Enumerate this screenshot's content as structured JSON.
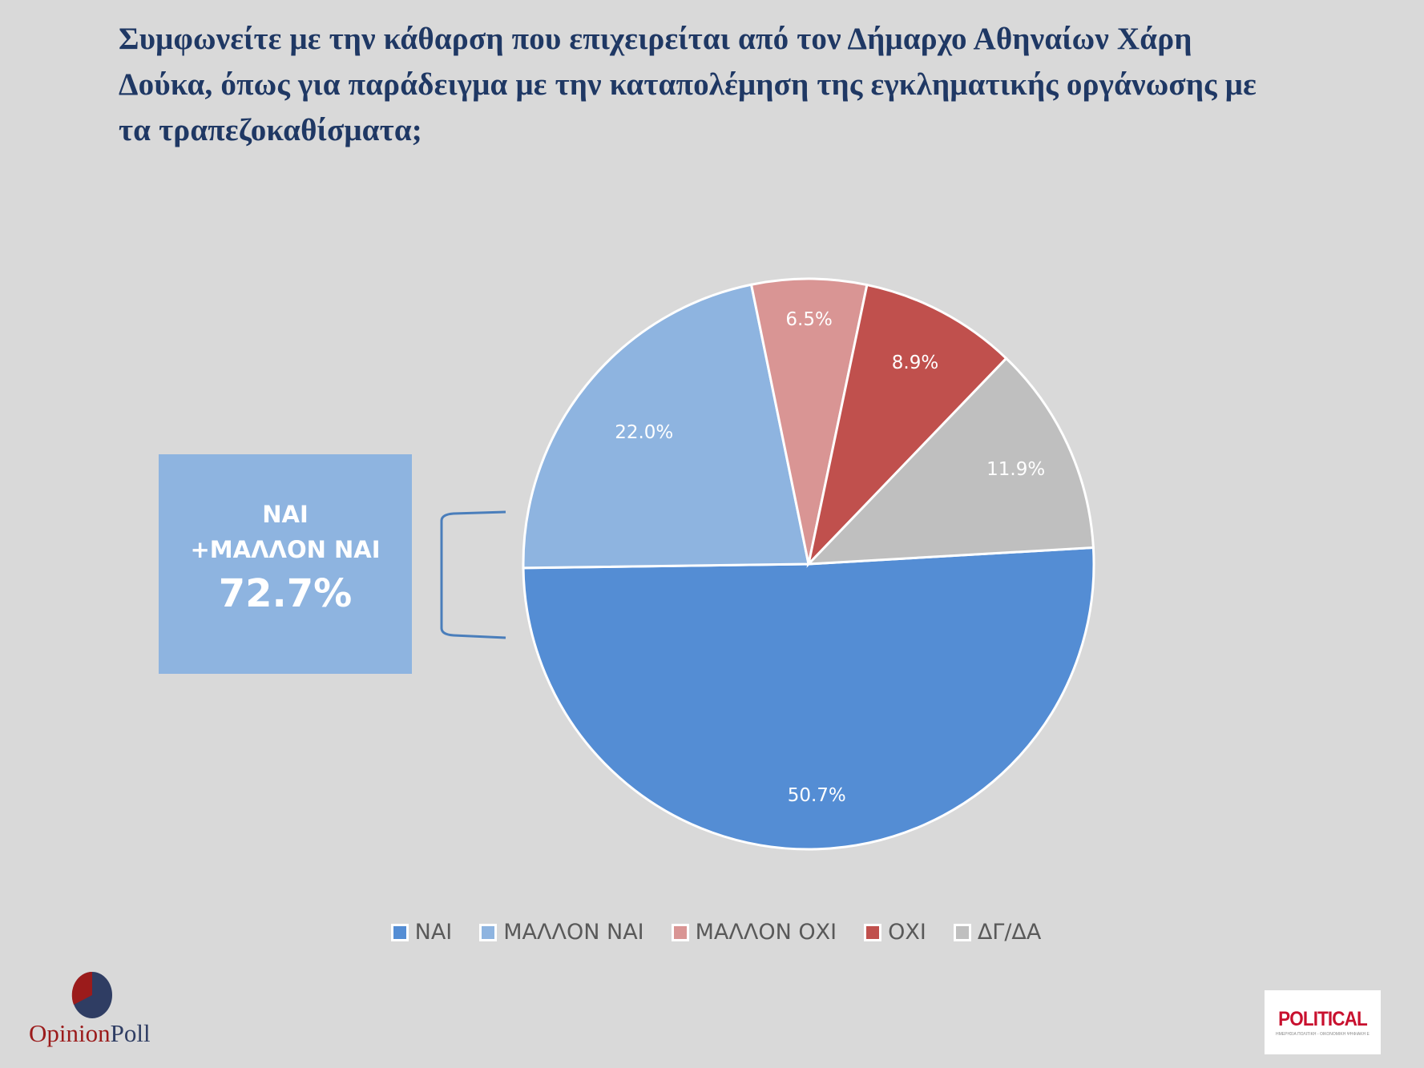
{
  "title": {
    "lines": [
      "Συμφωνείτε με την κάθαρση που επιχειρείται από τον Δήμαρχο Αθηναίων Χάρη",
      "Δούκα, όπως για παράδειγμα με την καταπολέμηση της εγκληματικής οργάνωσης με",
      "τα τραπεζοκαθίσματα;"
    ]
  },
  "summary_box": {
    "line1": "ΝΑΙ",
    "line2": "+ΜΑΛΛΟΝ ΝΑΙ",
    "value": "72.7%",
    "color": "#8eb4e0"
  },
  "legend": [
    {
      "label": "ΝΑΙ",
      "color": "#548dd4"
    },
    {
      "label": "ΜΑΛΛΟΝ ΝΑΙ",
      "color": "#8eb4e0"
    },
    {
      "label": "ΜΑΛΛΟΝ ΟΧΙ",
      "color": "#d99594"
    },
    {
      "label": "ΟΧΙ",
      "color": "#c0504d"
    },
    {
      "label": "ΔΓ/ΔΑ",
      "color": "#bfbfbf"
    }
  ],
  "logos": {
    "opinionpoll_part1": "Opinion",
    "opinionpoll_part2": "Poll",
    "political_name": "POLITICAL",
    "political_tagline": "ΗΜΕΡΗΣΙΑ ΠΟΛΙΤΙΚΗ - ΟΙΚΟΝΟΜΙΚΗ ΨΗΦΙΑΚΗ ΕΦΗΜΕΡΙΔΑ"
  },
  "chart_data": {
    "type": "pie",
    "title": "Συμφωνείτε με την κάθαρση που επιχειρείται από τον Δήμαρχο Αθηναίων Χάρη Δούκα, όπως για παράδειγμα με την καταπολέμηση της εγκληματικής οργάνωσης με τα τραπεζοκαθίσματα;",
    "categories": [
      "ΝΑΙ",
      "ΜΑΛΛΟΝ ΝΑΙ",
      "ΜΑΛΛΟΝ ΟΧΙ",
      "ΟΧΙ",
      "ΔΓ/ΔΑ"
    ],
    "values": [
      50.7,
      22.0,
      6.5,
      8.9,
      11.9
    ],
    "labels": [
      "50.7%",
      "22.0%",
      "6.5%",
      "8.9%",
      "11.9%"
    ],
    "colors": [
      "#548dd4",
      "#8eb4e0",
      "#d99594",
      "#c0504d",
      "#bfbfbf"
    ],
    "annotation": "ΝΑΙ +ΜΑΛΛΟΝ ΝΑΙ 72.7%",
    "legend_position": "bottom"
  }
}
